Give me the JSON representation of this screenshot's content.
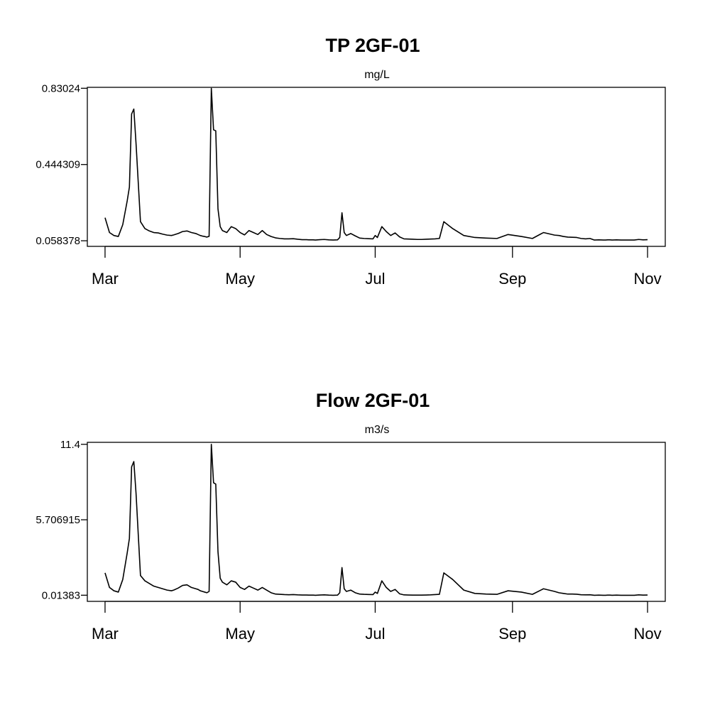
{
  "chart_data": [
    {
      "type": "line",
      "title": "TP 2GF-01",
      "unit_label": "mg/L",
      "xlabel": "",
      "ylabel": "",
      "x_tick_labels": [
        "Mar",
        "May",
        "Jul",
        "Sep",
        "Nov"
      ],
      "y_tick_labels": [
        "0.058378",
        "0.444309",
        "0.83024"
      ],
      "y_ticks": [
        0.058378,
        0.444309,
        0.83024
      ],
      "ylim": [
        0.03,
        0.835
      ],
      "xlim": [
        "2019-02-21",
        "2019-11-09"
      ],
      "grid": false,
      "series": [
        {
          "x": [
            "2019-03-01",
            "2019-03-03",
            "2019-03-05",
            "2019-03-07",
            "2019-03-09",
            "2019-03-11",
            "2019-03-12",
            "2019-03-13",
            "2019-03-14",
            "2019-03-15",
            "2019-03-17",
            "2019-03-19",
            "2019-03-21",
            "2019-03-23",
            "2019-03-25",
            "2019-03-27",
            "2019-03-29",
            "2019-03-31",
            "2019-04-01",
            "2019-04-03",
            "2019-04-05",
            "2019-04-07",
            "2019-04-09",
            "2019-04-11",
            "2019-04-12",
            "2019-04-13",
            "2019-04-14",
            "2019-04-15",
            "2019-04-16",
            "2019-04-17",
            "2019-04-18",
            "2019-04-19",
            "2019-04-20",
            "2019-04-21",
            "2019-04-22",
            "2019-04-23",
            "2019-04-25",
            "2019-04-27",
            "2019-04-29",
            "2019-05-01",
            "2019-05-03",
            "2019-05-05",
            "2019-05-07",
            "2019-05-09",
            "2019-05-11",
            "2019-05-13",
            "2019-05-15",
            "2019-05-17",
            "2019-05-19",
            "2019-05-21",
            "2019-05-23",
            "2019-05-25",
            "2019-05-27",
            "2019-05-29",
            "2019-05-31",
            "2019-06-01",
            "2019-06-02",
            "2019-06-03",
            "2019-06-04",
            "2019-06-06",
            "2019-06-08",
            "2019-06-10",
            "2019-06-12",
            "2019-06-14",
            "2019-06-15",
            "2019-06-16",
            "2019-06-17",
            "2019-06-18",
            "2019-06-20",
            "2019-06-22",
            "2019-06-24",
            "2019-06-26",
            "2019-06-28",
            "2019-06-30",
            "2019-07-01",
            "2019-07-02",
            "2019-07-04",
            "2019-07-06",
            "2019-07-08",
            "2019-07-10",
            "2019-07-12",
            "2019-07-14",
            "2019-07-16",
            "2019-07-18",
            "2019-07-20",
            "2019-07-22",
            "2019-07-24",
            "2019-07-26",
            "2019-07-28",
            "2019-07-30",
            "2019-08-01",
            "2019-08-05",
            "2019-08-10",
            "2019-08-15",
            "2019-08-20",
            "2019-08-25",
            "2019-08-30",
            "2019-09-05",
            "2019-09-10",
            "2019-09-15",
            "2019-09-20",
            "2019-09-22",
            "2019-09-24",
            "2019-09-26",
            "2019-09-28",
            "2019-09-30",
            "2019-10-02",
            "2019-10-04",
            "2019-10-06",
            "2019-10-08",
            "2019-10-10",
            "2019-10-12",
            "2019-10-13",
            "2019-10-14",
            "2019-10-15",
            "2019-10-16",
            "2019-10-18",
            "2019-10-20",
            "2019-10-22",
            "2019-10-24",
            "2019-10-26",
            "2019-10-28",
            "2019-10-30",
            "2019-11-01"
          ],
          "y": [
            0.175,
            0.1,
            0.085,
            0.08,
            0.14,
            0.26,
            0.33,
            0.7,
            0.725,
            0.55,
            0.155,
            0.12,
            0.108,
            0.1,
            0.098,
            0.092,
            0.087,
            0.085,
            0.088,
            0.095,
            0.105,
            0.108,
            0.1,
            0.095,
            0.09,
            0.085,
            0.082,
            0.08,
            0.077,
            0.081,
            0.83,
            0.62,
            0.615,
            0.22,
            0.13,
            0.11,
            0.1,
            0.13,
            0.12,
            0.1,
            0.088,
            0.11,
            0.1,
            0.09,
            0.11,
            0.09,
            0.08,
            0.073,
            0.07,
            0.068,
            0.068,
            0.069,
            0.066,
            0.064,
            0.064,
            0.063,
            0.063,
            0.063,
            0.062,
            0.064,
            0.065,
            0.063,
            0.062,
            0.063,
            0.075,
            0.2,
            0.1,
            0.085,
            0.095,
            0.083,
            0.072,
            0.07,
            0.069,
            0.068,
            0.085,
            0.075,
            0.13,
            0.105,
            0.085,
            0.098,
            0.078,
            0.068,
            0.067,
            0.066,
            0.065,
            0.065,
            0.066,
            0.067,
            0.068,
            0.07,
            0.155,
            0.12,
            0.085,
            0.075,
            0.072,
            0.07,
            0.09,
            0.08,
            0.07,
            0.1,
            0.087,
            0.085,
            0.08,
            0.077,
            0.076,
            0.075,
            0.07,
            0.068,
            0.07,
            0.062,
            0.063,
            0.062,
            0.062,
            0.063,
            0.063,
            0.062,
            0.063,
            0.062,
            0.062,
            0.062,
            0.062,
            0.065,
            0.063,
            0.064
          ]
        }
      ]
    },
    {
      "type": "line",
      "title": "Flow 2GF-01",
      "unit_label": "m3/s",
      "xlabel": "",
      "ylabel": "",
      "x_tick_labels": [
        "Mar",
        "May",
        "Jul",
        "Sep",
        "Nov"
      ],
      "y_tick_labels": [
        "0.01383",
        "5.706915",
        "11.4"
      ],
      "y_ticks": [
        0.01383,
        5.706915,
        11.4
      ],
      "ylim": [
        -0.45,
        11.55
      ],
      "xlim": [
        "2019-02-21",
        "2019-11-09"
      ],
      "grid": false,
      "series": [
        {
          "x": [
            "2019-03-01",
            "2019-03-03",
            "2019-03-05",
            "2019-03-07",
            "2019-03-09",
            "2019-03-11",
            "2019-03-12",
            "2019-03-13",
            "2019-03-14",
            "2019-03-15",
            "2019-03-17",
            "2019-03-19",
            "2019-03-21",
            "2019-03-23",
            "2019-03-25",
            "2019-03-27",
            "2019-03-29",
            "2019-03-31",
            "2019-04-01",
            "2019-04-03",
            "2019-04-05",
            "2019-04-07",
            "2019-04-09",
            "2019-04-11",
            "2019-04-12",
            "2019-04-13",
            "2019-04-14",
            "2019-04-15",
            "2019-04-16",
            "2019-04-17",
            "2019-04-18",
            "2019-04-19",
            "2019-04-20",
            "2019-04-21",
            "2019-04-22",
            "2019-04-23",
            "2019-04-25",
            "2019-04-27",
            "2019-04-29",
            "2019-05-01",
            "2019-05-03",
            "2019-05-05",
            "2019-05-07",
            "2019-05-09",
            "2019-05-11",
            "2019-05-13",
            "2019-05-15",
            "2019-05-17",
            "2019-05-19",
            "2019-05-21",
            "2019-05-23",
            "2019-05-25",
            "2019-05-27",
            "2019-05-29",
            "2019-05-31",
            "2019-06-01",
            "2019-06-02",
            "2019-06-03",
            "2019-06-04",
            "2019-06-06",
            "2019-06-08",
            "2019-06-10",
            "2019-06-12",
            "2019-06-14",
            "2019-06-15",
            "2019-06-16",
            "2019-06-17",
            "2019-06-18",
            "2019-06-20",
            "2019-06-22",
            "2019-06-24",
            "2019-06-26",
            "2019-06-28",
            "2019-06-30",
            "2019-07-01",
            "2019-07-02",
            "2019-07-04",
            "2019-07-06",
            "2019-07-08",
            "2019-07-10",
            "2019-07-12",
            "2019-07-14",
            "2019-07-16",
            "2019-07-18",
            "2019-07-20",
            "2019-07-22",
            "2019-07-24",
            "2019-07-26",
            "2019-07-28",
            "2019-07-30",
            "2019-08-01",
            "2019-08-05",
            "2019-08-10",
            "2019-08-15",
            "2019-08-20",
            "2019-08-25",
            "2019-08-30",
            "2019-09-05",
            "2019-09-10",
            "2019-09-15",
            "2019-09-20",
            "2019-09-22",
            "2019-09-24",
            "2019-09-26",
            "2019-09-28",
            "2019-09-30",
            "2019-10-02",
            "2019-10-04",
            "2019-10-06",
            "2019-10-08",
            "2019-10-10",
            "2019-10-12",
            "2019-10-13",
            "2019-10-14",
            "2019-10-15",
            "2019-10-16",
            "2019-10-18",
            "2019-10-20",
            "2019-10-22",
            "2019-10-24",
            "2019-10-26",
            "2019-10-28",
            "2019-10-30",
            "2019-11-01"
          ],
          "y": [
            1.7,
            0.6,
            0.35,
            0.25,
            1.2,
            3.2,
            4.3,
            9.7,
            10.1,
            7.7,
            1.5,
            1.1,
            0.9,
            0.7,
            0.6,
            0.5,
            0.4,
            0.35,
            0.4,
            0.55,
            0.75,
            0.8,
            0.6,
            0.5,
            0.45,
            0.35,
            0.3,
            0.25,
            0.2,
            0.3,
            11.4,
            8.5,
            8.4,
            3.3,
            1.3,
            1.0,
            0.8,
            1.1,
            1.0,
            0.6,
            0.45,
            0.7,
            0.55,
            0.4,
            0.6,
            0.4,
            0.2,
            0.1,
            0.08,
            0.06,
            0.05,
            0.06,
            0.04,
            0.03,
            0.03,
            0.02,
            0.02,
            0.02,
            0.01,
            0.03,
            0.04,
            0.02,
            0.01,
            0.02,
            0.2,
            2.1,
            0.5,
            0.3,
            0.4,
            0.2,
            0.1,
            0.08,
            0.07,
            0.06,
            0.25,
            0.15,
            1.1,
            0.6,
            0.3,
            0.45,
            0.12,
            0.04,
            0.03,
            0.02,
            0.02,
            0.02,
            0.03,
            0.04,
            0.06,
            0.08,
            1.7,
            1.2,
            0.4,
            0.15,
            0.1,
            0.08,
            0.35,
            0.25,
            0.08,
            0.5,
            0.3,
            0.2,
            0.15,
            0.1,
            0.1,
            0.09,
            0.05,
            0.04,
            0.05,
            0.01,
            0.02,
            0.01,
            0.01,
            0.02,
            0.02,
            0.01,
            0.02,
            0.01,
            0.01,
            0.01,
            0.01,
            0.04,
            0.02,
            0.03
          ]
        }
      ]
    }
  ]
}
